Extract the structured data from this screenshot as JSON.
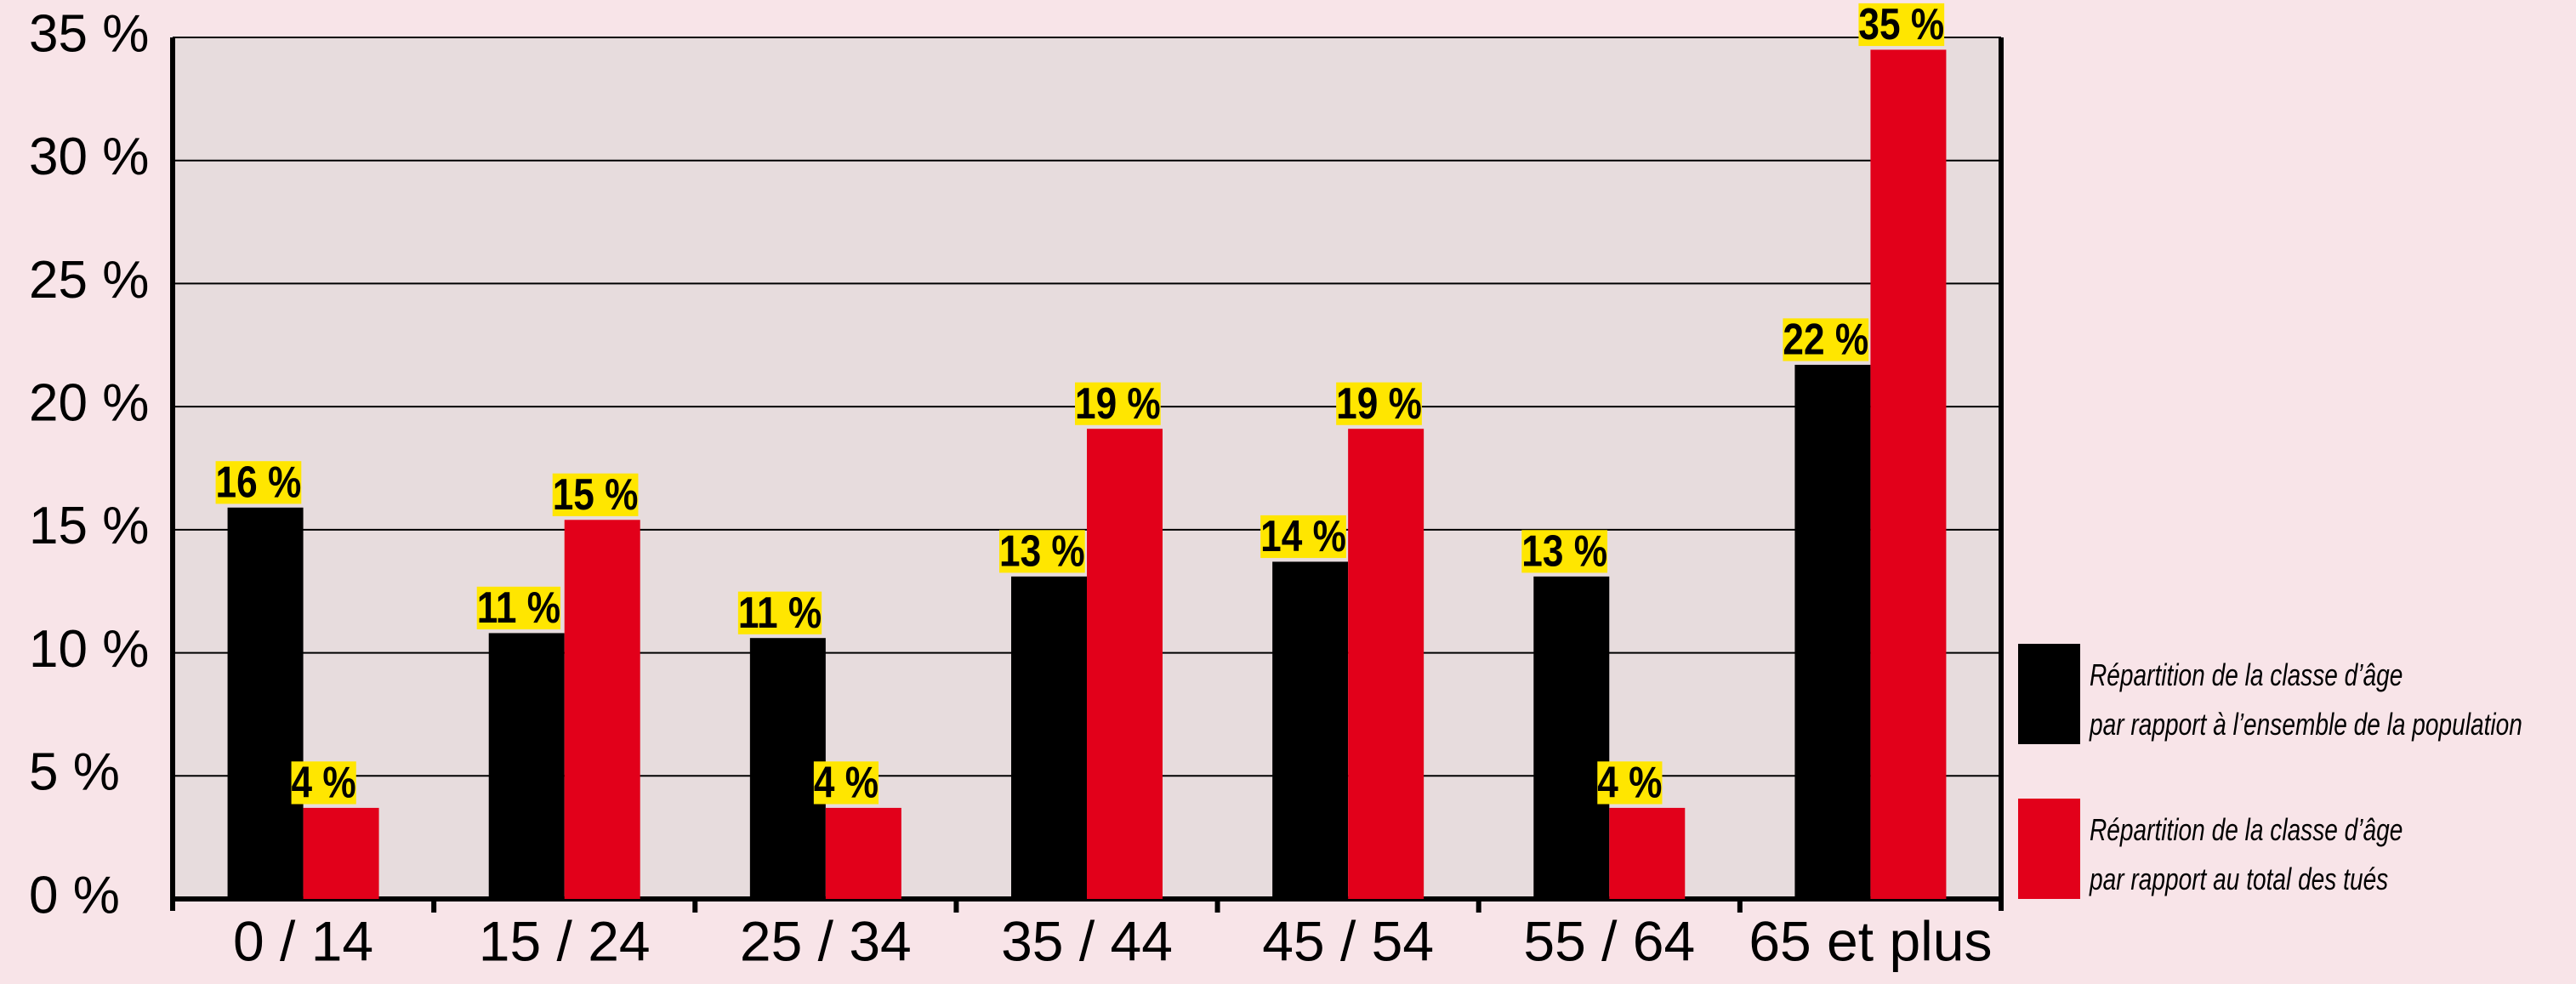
{
  "chart_data": {
    "type": "bar",
    "categories": [
      "0 / 14",
      "15 / 24",
      "25 / 34",
      "35 / 44",
      "45 / 54",
      "55 / 64",
      "65 et plus"
    ],
    "series": [
      {
        "name": "Répartition de la classe d’âge\npar rapport à l’ensemble de la population",
        "color": "#000000",
        "values": [
          15.9,
          10.8,
          10.6,
          13.1,
          13.7,
          13.1,
          21.7
        ],
        "value_labels": [
          "16 %",
          "11 %",
          "11 %",
          "13 %",
          "14 %",
          "13 %",
          "22 %"
        ]
      },
      {
        "name": "Répartition de la classe d’âge\npar rapport au total des tués",
        "color": "#e2001a",
        "values": [
          3.7,
          15.4,
          3.7,
          19.1,
          19.1,
          3.7,
          34.5
        ],
        "value_labels": [
          "4 %",
          "15 %",
          "4 %",
          "19 %",
          "19 %",
          "4 %",
          "35 %"
        ]
      }
    ],
    "ylim": [
      0,
      35
    ],
    "yticks": [
      {
        "value": 0,
        "label": "0 %"
      },
      {
        "value": 5,
        "label": "5 %"
      },
      {
        "value": 10,
        "label": "10 %"
      },
      {
        "value": 15,
        "label": "15 %"
      },
      {
        "value": 20,
        "label": "20 %"
      },
      {
        "value": 25,
        "label": "25 %"
      },
      {
        "value": 30,
        "label": "30 %"
      },
      {
        "value": 35,
        "label": "35 %"
      }
    ],
    "grid": true
  }
}
